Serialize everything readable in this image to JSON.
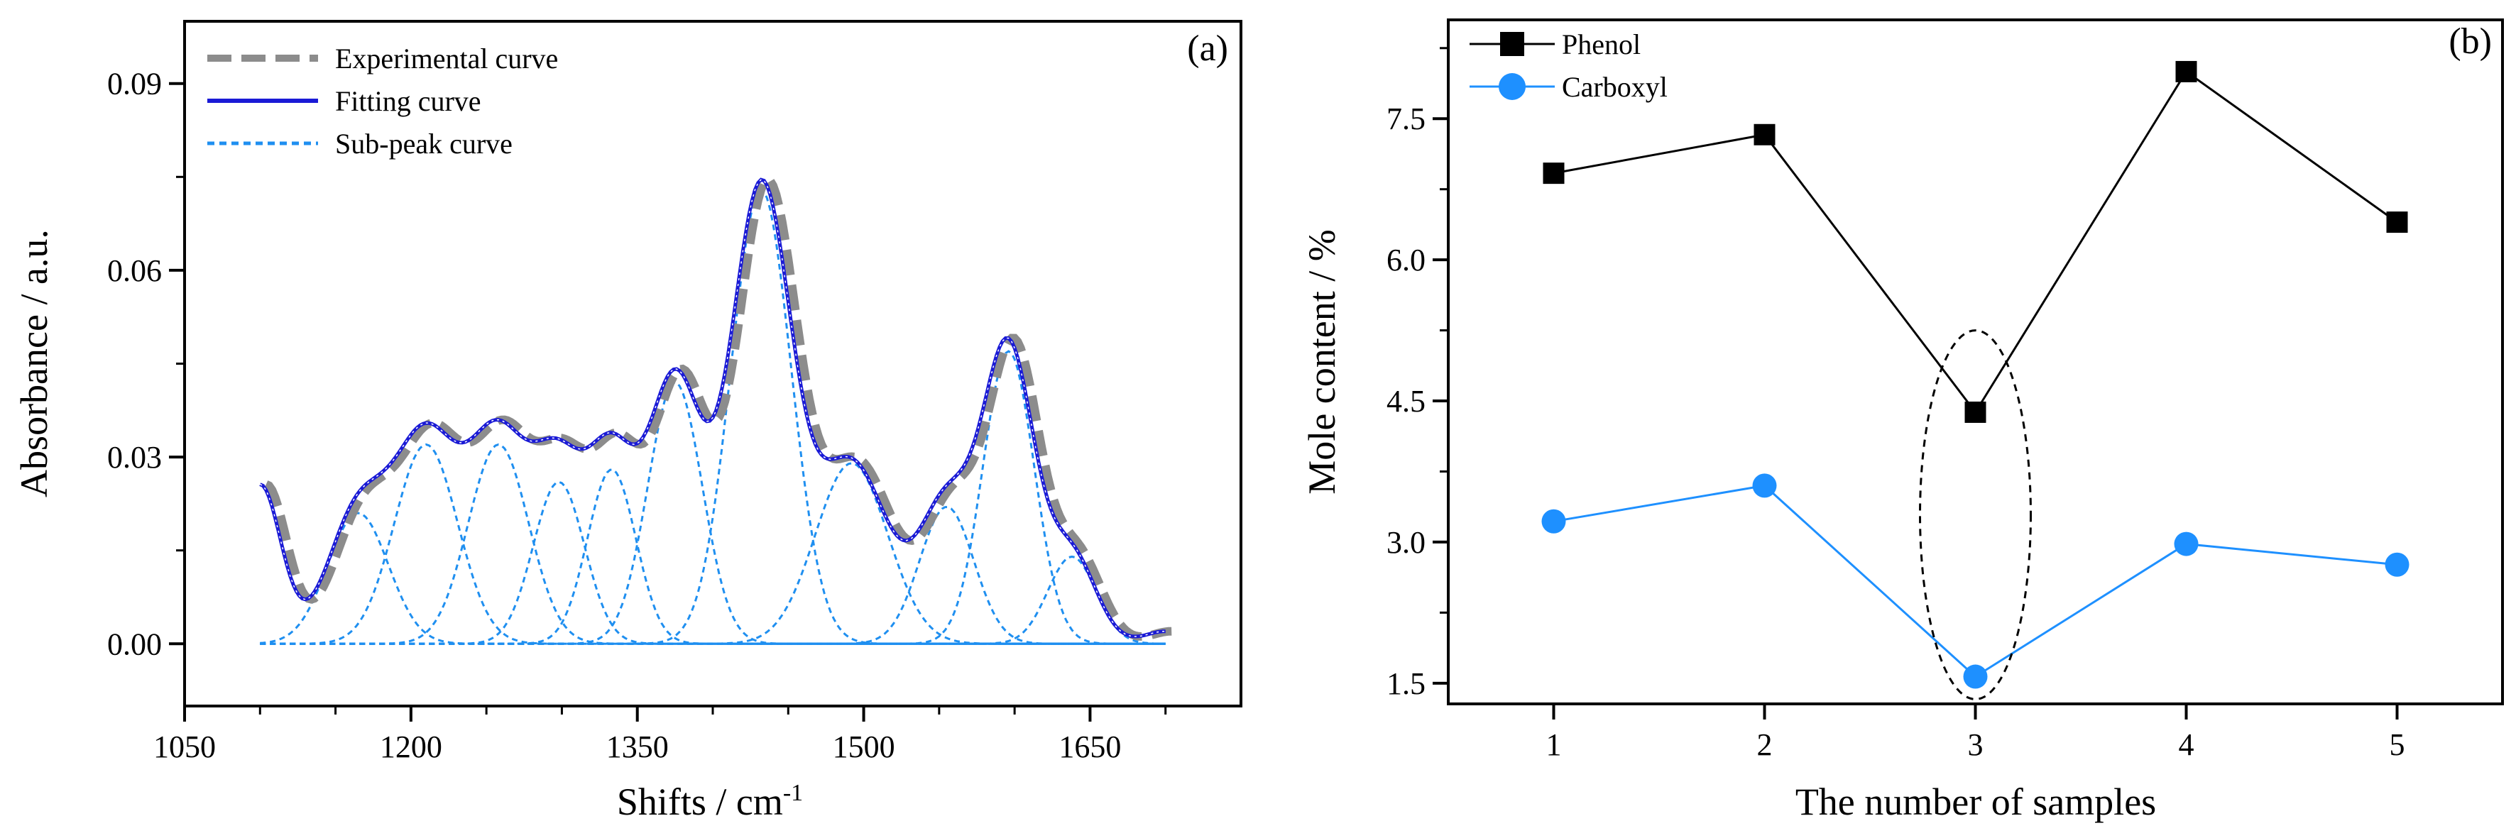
{
  "chart_data": [
    {
      "type": "line",
      "panel_label": "(a)",
      "xlabel": "Shifts / cm",
      "xlabel_sup": "-1",
      "ylabel": "Absorbance / a.u.",
      "xlim": [
        1050,
        1750
      ],
      "ylim": [
        -0.01,
        0.1
      ],
      "xticks": [
        1050,
        1200,
        1350,
        1500,
        1650
      ],
      "xtick_labels": [
        "1050",
        "1200",
        "1350",
        "1500",
        "1650"
      ],
      "yticks": [
        0.0,
        0.03,
        0.06,
        0.09
      ],
      "ytick_labels": [
        "0.00",
        "0.03",
        "0.06",
        "0.09"
      ],
      "legend": [
        "Experimental curve",
        "Fitting curve",
        "Sub-peak curve"
      ],
      "legend_position": "top-left",
      "colors": {
        "experimental": "#8c8c8c",
        "fitting": "#1a1ad6",
        "subpeak": "#1f8ff0"
      },
      "baseline": 0.0255,
      "edge_sigma": 14,
      "x_range": [
        1100,
        1700
      ],
      "sub_peaks": [
        {
          "center": 1165,
          "amplitude": 0.021,
          "sigma": 20
        },
        {
          "center": 1210,
          "amplitude": 0.032,
          "sigma": 21
        },
        {
          "center": 1258,
          "amplitude": 0.032,
          "sigma": 20
        },
        {
          "center": 1298,
          "amplitude": 0.026,
          "sigma": 17
        },
        {
          "center": 1333,
          "amplitude": 0.028,
          "sigma": 16
        },
        {
          "center": 1375,
          "amplitude": 0.042,
          "sigma": 18
        },
        {
          "center": 1432,
          "amplitude": 0.073,
          "sigma": 20
        },
        {
          "center": 1492,
          "amplitude": 0.029,
          "sigma": 24
        },
        {
          "center": 1555,
          "amplitude": 0.022,
          "sigma": 18
        },
        {
          "center": 1596,
          "amplitude": 0.047,
          "sigma": 17
        },
        {
          "center": 1638,
          "amplitude": 0.014,
          "sigma": 16
        }
      ]
    },
    {
      "type": "line",
      "panel_label": "(b)",
      "xlabel": "The number of samples",
      "ylabel": "Mole content / %",
      "xlim": [
        0.5,
        5.5
      ],
      "ylim": [
        1.5,
        8.5
      ],
      "xticks": [
        1,
        2,
        3,
        4,
        5
      ],
      "xtick_labels": [
        "1",
        "2",
        "3",
        "4",
        "5"
      ],
      "yticks": [
        1.5,
        3.0,
        4.5,
        6.0,
        7.5
      ],
      "ytick_labels": [
        "1.5",
        "3.0",
        "4.5",
        "6.0",
        "7.5"
      ],
      "x": [
        1,
        2,
        3,
        4,
        5
      ],
      "series": [
        {
          "name": "Phenol",
          "marker": "square",
          "color": "#000000",
          "values": [
            6.92,
            7.33,
            4.38,
            8.0,
            6.4
          ]
        },
        {
          "name": "Carboxyl",
          "marker": "circle",
          "color": "#1e90ff",
          "values": [
            3.22,
            3.6,
            1.57,
            2.98,
            2.76
          ]
        }
      ],
      "legend_position": "top-left",
      "annotation": {
        "type": "dashed-ellipse",
        "x": 3,
        "y_range": [
          1.33,
          5.25
        ]
      }
    }
  ]
}
